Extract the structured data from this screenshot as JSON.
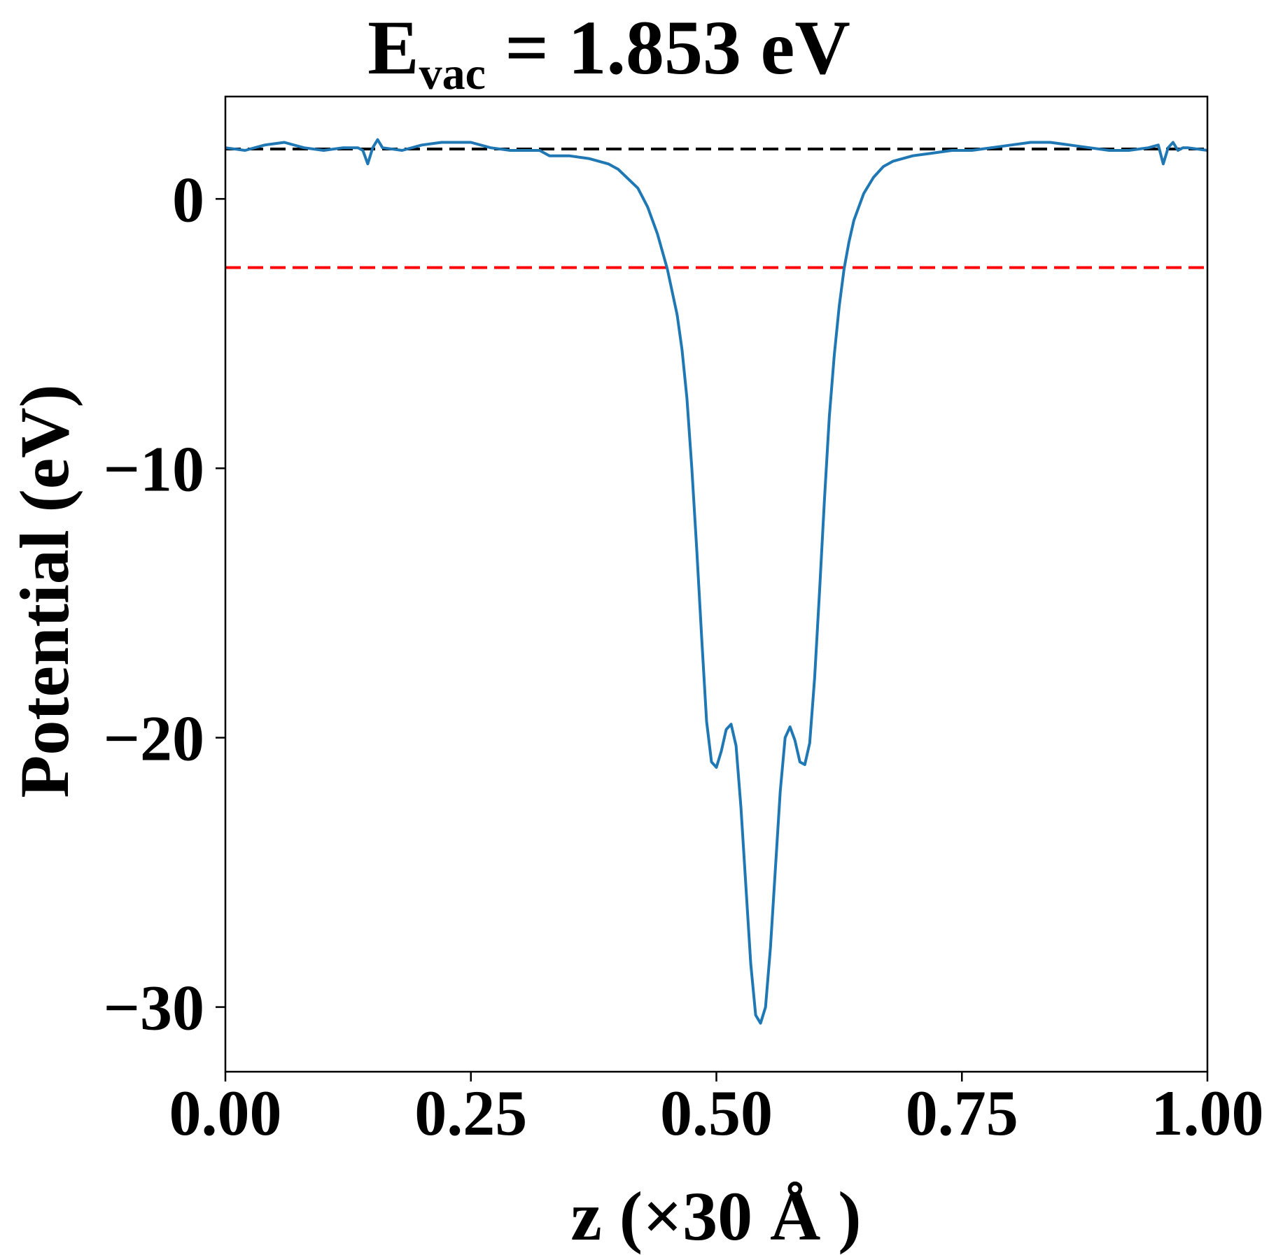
{
  "chart_data": {
    "type": "line",
    "title": {
      "main": "E",
      "subscript": "vac",
      "rest": " = 1.853 eV"
    },
    "xlabel": "z (×30 Å )",
    "ylabel": "Potential (eV)",
    "xlim": [
      0,
      1
    ],
    "ylim": [
      -32.4,
      3.8
    ],
    "x_ticks": [
      0.0,
      0.25,
      0.5,
      0.75,
      1.0
    ],
    "x_tick_labels": [
      "0.00",
      "0.25",
      "0.50",
      "0.75",
      "1.00"
    ],
    "y_ticks": [
      0,
      -10,
      -20,
      -30
    ],
    "y_tick_labels": [
      "0",
      "−10",
      "−20",
      "−30"
    ],
    "grid": false,
    "series": [
      {
        "role": "potential-curve",
        "color": "#1f77b4",
        "x": [
          0.0,
          0.02,
          0.04,
          0.06,
          0.08,
          0.1,
          0.12,
          0.135,
          0.14,
          0.145,
          0.15,
          0.155,
          0.16,
          0.18,
          0.2,
          0.22,
          0.25,
          0.27,
          0.29,
          0.31,
          0.32,
          0.33,
          0.35,
          0.37,
          0.39,
          0.4,
          0.42,
          0.43,
          0.44,
          0.45,
          0.46,
          0.465,
          0.47,
          0.475,
          0.48,
          0.485,
          0.49,
          0.495,
          0.5,
          0.505,
          0.51,
          0.515,
          0.52,
          0.525,
          0.53,
          0.535,
          0.54,
          0.545,
          0.55,
          0.555,
          0.56,
          0.565,
          0.57,
          0.575,
          0.58,
          0.585,
          0.59,
          0.595,
          0.6,
          0.605,
          0.61,
          0.615,
          0.62,
          0.625,
          0.63,
          0.635,
          0.64,
          0.65,
          0.66,
          0.67,
          0.68,
          0.7,
          0.72,
          0.74,
          0.76,
          0.78,
          0.8,
          0.82,
          0.84,
          0.86,
          0.88,
          0.9,
          0.92,
          0.94,
          0.95,
          0.955,
          0.96,
          0.965,
          0.97,
          0.975,
          0.98,
          1.0
        ],
        "y": [
          1.9,
          1.8,
          2.0,
          2.1,
          1.9,
          1.8,
          1.9,
          1.9,
          1.8,
          1.3,
          1.9,
          2.2,
          1.9,
          1.8,
          2.0,
          2.1,
          2.1,
          1.9,
          1.8,
          1.8,
          1.8,
          1.6,
          1.6,
          1.5,
          1.3,
          1.1,
          0.4,
          -0.3,
          -1.3,
          -2.6,
          -4.3,
          -5.6,
          -7.4,
          -10.0,
          -13.0,
          -16.3,
          -19.4,
          -20.9,
          -21.1,
          -20.5,
          -19.7,
          -19.5,
          -20.3,
          -22.6,
          -25.5,
          -28.4,
          -30.3,
          -30.6,
          -30.0,
          -27.8,
          -24.9,
          -22.0,
          -20.0,
          -19.6,
          -20.1,
          -20.9,
          -21.0,
          -20.2,
          -17.8,
          -14.6,
          -11.2,
          -8.1,
          -5.8,
          -4.0,
          -2.6,
          -1.6,
          -0.8,
          0.2,
          0.8,
          1.2,
          1.4,
          1.6,
          1.7,
          1.8,
          1.8,
          1.9,
          2.0,
          2.1,
          2.1,
          2.0,
          1.9,
          1.8,
          1.8,
          1.9,
          2.0,
          1.3,
          1.9,
          2.1,
          1.8,
          1.9,
          1.9,
          1.8
        ]
      }
    ],
    "reference_lines": [
      {
        "role": "vacuum-level",
        "y": 1.853,
        "color": "#000000",
        "style": "dashed"
      },
      {
        "role": "fermi-level",
        "y": -2.55,
        "color": "#ff0000",
        "style": "dashed"
      }
    ]
  }
}
